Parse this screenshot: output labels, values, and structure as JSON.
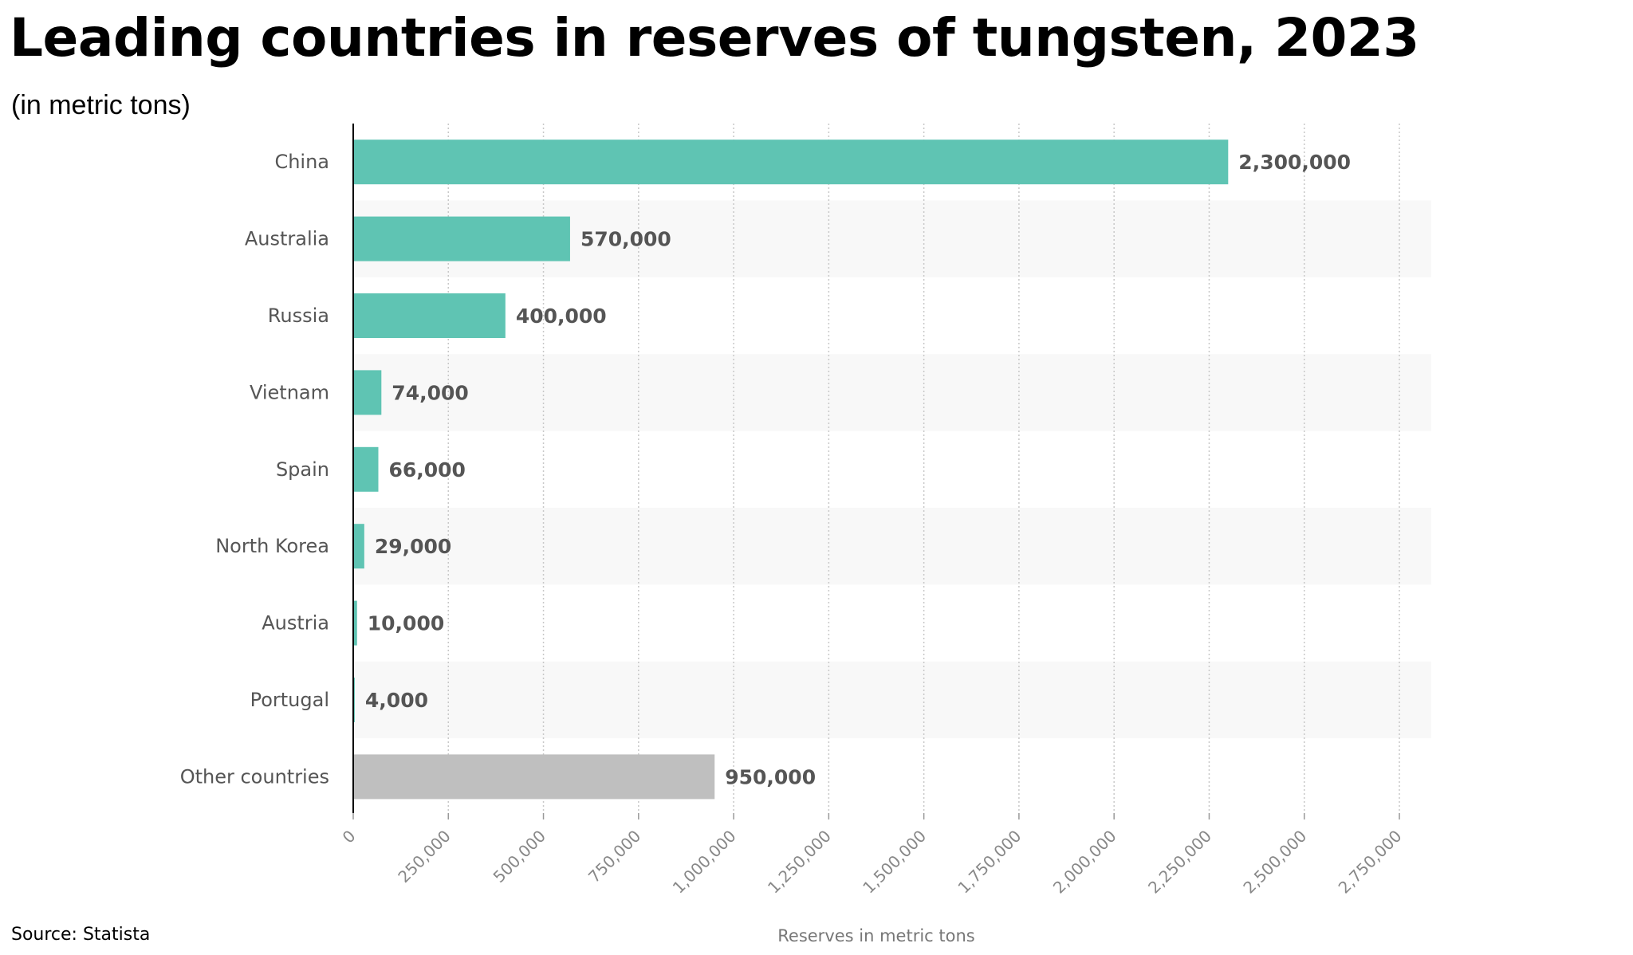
{
  "header": {
    "title": "Leading countries in reserves of tungsten, 2023",
    "subtitle": "(in metric tons)"
  },
  "footer": {
    "source": "Source: Statista"
  },
  "colors": {
    "bar": "#5fc4b3",
    "bar_other": "#bfbfbf",
    "band": "#f8f8f8",
    "grid": "#c8c8c8",
    "axis": "#000000"
  },
  "chart_data": {
    "type": "bar",
    "orientation": "horizontal",
    "categories": [
      "China",
      "Australia",
      "Russia",
      "Vietnam",
      "Spain",
      "North Korea",
      "Austria",
      "Portugal",
      "Other countries"
    ],
    "values": [
      2300000,
      570000,
      400000,
      74000,
      66000,
      29000,
      10000,
      4000,
      950000
    ],
    "value_labels": [
      "2,300,000",
      "570,000",
      "400,000",
      "74,000",
      "66,000",
      "29,000",
      "10,000",
      "4,000",
      "950,000"
    ],
    "highlight_last_gray": true,
    "xlim": [
      0,
      2750000
    ],
    "x_ticks": [
      0,
      250000,
      500000,
      750000,
      1000000,
      1250000,
      1500000,
      1750000,
      2000000,
      2250000,
      2500000,
      2750000
    ],
    "x_tick_labels": [
      "0",
      "250,000",
      "500,000",
      "750,000",
      "1,000,000",
      "1,250,000",
      "1,500,000",
      "1,750,000",
      "2,000,000",
      "2,250,000",
      "2,500,000",
      "2,750,000"
    ],
    "xlabel": "Reserves in metric tons",
    "grid": true,
    "alternating_row_bands": true
  }
}
